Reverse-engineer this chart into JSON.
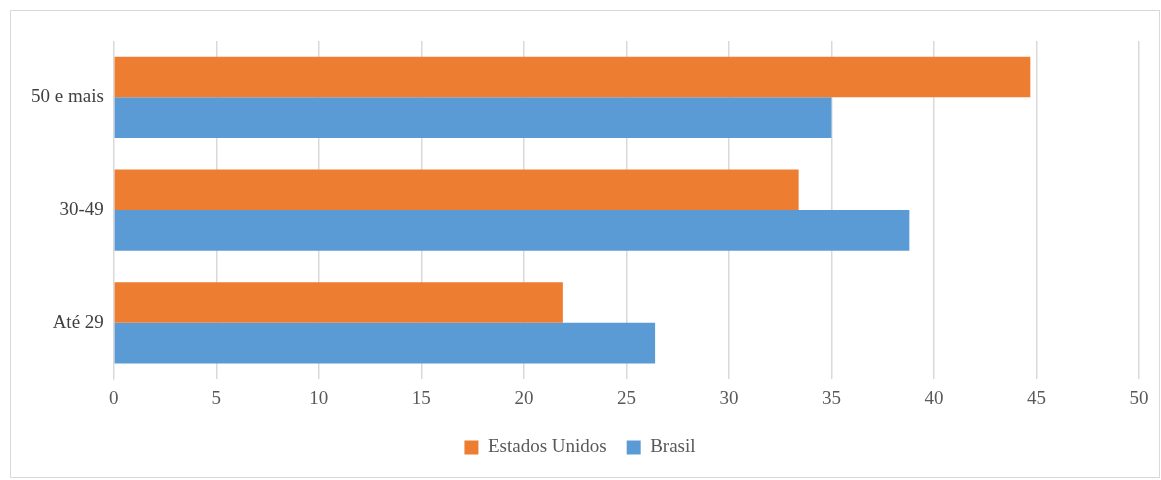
{
  "chart_data": {
    "type": "bar",
    "orientation": "horizontal",
    "categories": [
      "50 e mais",
      "30-49",
      "Até 29"
    ],
    "series": [
      {
        "name": "Estados Unidos",
        "color": "#ed7d31",
        "values": [
          44.7,
          33.4,
          21.9
        ]
      },
      {
        "name": "Brasil",
        "color": "#5b9bd5",
        "values": [
          35.0,
          38.8,
          26.4
        ]
      }
    ],
    "xlim": [
      0,
      50
    ],
    "xticks": [
      0,
      5,
      10,
      15,
      20,
      25,
      30,
      35,
      40,
      45,
      50
    ],
    "grid": "x",
    "legend": "bottom"
  }
}
